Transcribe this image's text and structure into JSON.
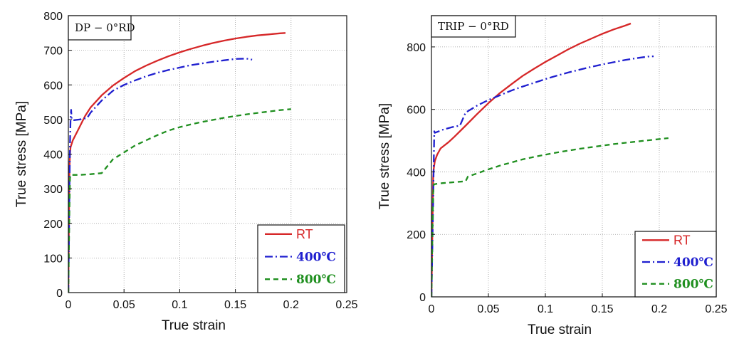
{
  "chart_data": [
    {
      "type": "line",
      "annotation": "DP − 0°RD",
      "xlabel": "True strain",
      "ylabel": "True stress [MPa]",
      "xlim": [
        0,
        0.25
      ],
      "ylim": [
        0,
        800
      ],
      "xticks": [
        "0",
        "0.05",
        "0.1",
        "0.15",
        "0.2",
        "0.25"
      ],
      "xtick_values": [
        0,
        0.05,
        0.1,
        0.15,
        0.2,
        0.25
      ],
      "yticks": [
        "0",
        "100",
        "200",
        "300",
        "400",
        "500",
        "600",
        "700",
        "800"
      ],
      "ytick_values": [
        0,
        100,
        200,
        300,
        400,
        500,
        600,
        700,
        800
      ],
      "grid": true,
      "legend_position": "bottom-right",
      "series": [
        {
          "name": "RT",
          "color": "#d62728",
          "dash": "solid",
          "x": [
            0,
            0.0005,
            0.001,
            0.0015,
            0.002,
            0.004,
            0.008,
            0.015,
            0.02,
            0.03,
            0.04,
            0.05,
            0.06,
            0.07,
            0.08,
            0.09,
            0.1,
            0.11,
            0.12,
            0.13,
            0.14,
            0.15,
            0.16,
            0.17,
            0.18,
            0.19,
            0.195
          ],
          "y": [
            0,
            200,
            360,
            400,
            420,
            440,
            465,
            510,
            535,
            570,
            598,
            620,
            640,
            656,
            670,
            683,
            694,
            704,
            713,
            721,
            728,
            734,
            739,
            743,
            746,
            749,
            750
          ]
        },
        {
          "name": "400℃",
          "color": "#1f1fcf",
          "dash": "dashdot",
          "x": [
            0,
            0.001,
            0.0015,
            0.002,
            0.0025,
            0.003,
            0.005,
            0.01,
            0.017,
            0.02,
            0.03,
            0.04,
            0.05,
            0.06,
            0.07,
            0.08,
            0.09,
            0.1,
            0.11,
            0.12,
            0.13,
            0.14,
            0.15,
            0.16,
            0.165
          ],
          "y": [
            0,
            300,
            430,
            500,
            528,
            500,
            498,
            500,
            505,
            520,
            555,
            583,
            600,
            613,
            625,
            635,
            643,
            650,
            657,
            662,
            667,
            671,
            675,
            676,
            673
          ]
        },
        {
          "name": "800℃",
          "color": "#1f8f1f",
          "dash": "dashed",
          "x": [
            0,
            0.001,
            0.0015,
            0.002,
            0.005,
            0.01,
            0.02,
            0.03,
            0.035,
            0.04,
            0.05,
            0.06,
            0.07,
            0.08,
            0.09,
            0.1,
            0.11,
            0.12,
            0.13,
            0.14,
            0.15,
            0.16,
            0.17,
            0.18,
            0.19,
            0.2
          ],
          "y": [
            0,
            250,
            330,
            340,
            340,
            340,
            342,
            345,
            365,
            385,
            405,
            425,
            440,
            455,
            468,
            478,
            486,
            493,
            499,
            505,
            510,
            515,
            519,
            523,
            527,
            530
          ]
        }
      ]
    },
    {
      "type": "line",
      "annotation": "TRIP − 0°RD",
      "xlabel": "True strain",
      "ylabel": "True stress [MPa]",
      "xlim": [
        0,
        0.25
      ],
      "ylim": [
        0,
        900
      ],
      "xticks": [
        "0",
        "0.05",
        "0.1",
        "0.15",
        "0.2",
        "0.25"
      ],
      "xtick_values": [
        0,
        0.05,
        0.1,
        0.15,
        0.2,
        0.25
      ],
      "yticks": [
        "0",
        "200",
        "400",
        "600",
        "800"
      ],
      "ytick_values": [
        0,
        200,
        400,
        600,
        800
      ],
      "grid": true,
      "legend_position": "bottom-right",
      "series": [
        {
          "name": "RT",
          "color": "#d62728",
          "dash": "solid",
          "x": [
            0,
            0.001,
            0.0015,
            0.002,
            0.003,
            0.005,
            0.008,
            0.015,
            0.02,
            0.03,
            0.04,
            0.05,
            0.06,
            0.07,
            0.08,
            0.09,
            0.1,
            0.11,
            0.12,
            0.13,
            0.14,
            0.15,
            0.16,
            0.17,
            0.175
          ],
          "y": [
            0,
            250,
            380,
            410,
            435,
            455,
            475,
            495,
            512,
            548,
            585,
            620,
            652,
            680,
            707,
            730,
            752,
            772,
            792,
            810,
            826,
            842,
            856,
            868,
            875
          ]
        },
        {
          "name": "400℃",
          "color": "#1f1fcf",
          "dash": "dashdot",
          "x": [
            0,
            0.0015,
            0.002,
            0.0025,
            0.003,
            0.005,
            0.01,
            0.02,
            0.025,
            0.03,
            0.04,
            0.05,
            0.06,
            0.07,
            0.08,
            0.09,
            0.1,
            0.11,
            0.12,
            0.13,
            0.14,
            0.15,
            0.16,
            0.17,
            0.18,
            0.19,
            0.195
          ],
          "y": [
            0,
            300,
            430,
            530,
            525,
            528,
            535,
            545,
            548,
            590,
            612,
            630,
            645,
            660,
            673,
            685,
            697,
            708,
            718,
            727,
            736,
            744,
            751,
            758,
            764,
            769,
            770
          ]
        },
        {
          "name": "800℃",
          "color": "#1f8f1f",
          "dash": "dashed",
          "x": [
            0,
            0.001,
            0.0015,
            0.002,
            0.005,
            0.01,
            0.02,
            0.03,
            0.032,
            0.04,
            0.05,
            0.06,
            0.07,
            0.08,
            0.09,
            0.1,
            0.11,
            0.12,
            0.13,
            0.14,
            0.15,
            0.16,
            0.17,
            0.18,
            0.19,
            0.2,
            0.208
          ],
          "y": [
            0,
            240,
            330,
            360,
            362,
            364,
            367,
            370,
            385,
            395,
            408,
            420,
            430,
            440,
            448,
            455,
            462,
            468,
            474,
            479,
            484,
            489,
            493,
            497,
            501,
            505,
            508
          ]
        }
      ]
    }
  ]
}
